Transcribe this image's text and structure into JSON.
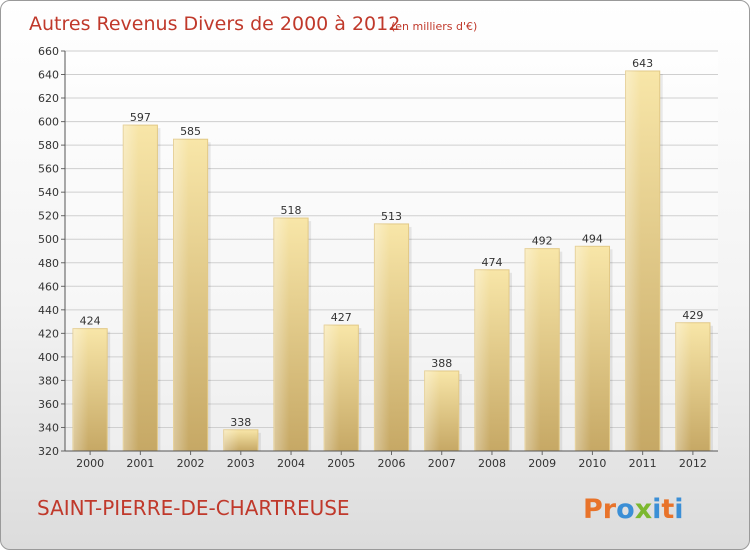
{
  "header": {
    "title": "Autres Revenus Divers de 2000 à 2012",
    "unit": "(en milliers d'€)"
  },
  "footer": {
    "location": "SAINT-PIERRE-DE-CHARTREUSE",
    "logo": [
      "P",
      "r",
      "o",
      "x",
      "i",
      "t",
      "i"
    ]
  },
  "colors": {
    "title": "#c0392b",
    "bar_light": "#f8e6a8",
    "bar_dark": "#c6a865",
    "logo": [
      "#e8732a",
      "#e8732a",
      "#3b8fd6",
      "#7cb82f",
      "#3b8fd6",
      "#e8732a",
      "#3b8fd6"
    ]
  },
  "chart_data": {
    "type": "bar",
    "categories": [
      "2000",
      "2001",
      "2002",
      "2003",
      "2004",
      "2005",
      "2006",
      "2007",
      "2008",
      "2009",
      "2010",
      "2011",
      "2012"
    ],
    "values": [
      424,
      597,
      585,
      338,
      518,
      427,
      513,
      388,
      474,
      492,
      494,
      643,
      429
    ],
    "ylim": [
      320,
      660
    ],
    "yticks": [
      320,
      340,
      360,
      380,
      400,
      420,
      440,
      460,
      480,
      500,
      520,
      540,
      560,
      580,
      600,
      620,
      640,
      660
    ],
    "grid": true,
    "data_labels": true
  }
}
